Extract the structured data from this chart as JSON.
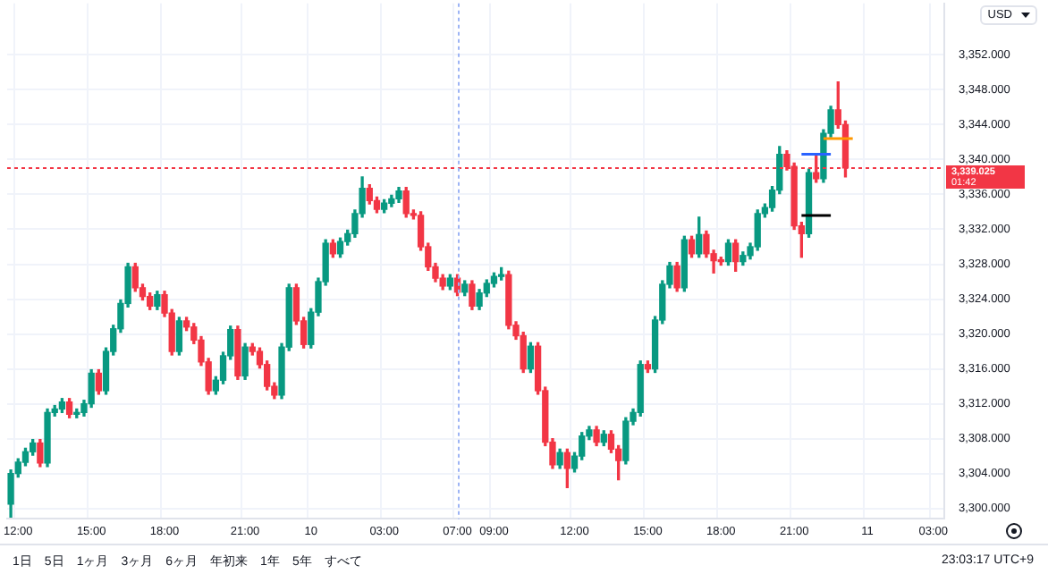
{
  "chart_data": {
    "type": "candlestick",
    "ylabel": "USD",
    "categories": [
      null,
      "12:00",
      null,
      null,
      null,
      null,
      null,
      null,
      null,
      null,
      null,
      "15:00",
      null,
      null,
      null,
      null,
      null,
      null,
      null,
      null,
      null,
      "18:00",
      null,
      null,
      null,
      null,
      null,
      null,
      null,
      null,
      null,
      null,
      "21:00",
      null,
      null,
      null,
      null,
      null,
      null,
      null,
      null,
      "10",
      null,
      null,
      null,
      null,
      null,
      null,
      null,
      null,
      null,
      "03:00",
      null,
      null,
      null,
      null,
      null,
      null,
      null,
      null,
      null,
      "07:00",
      null,
      null,
      null,
      null,
      "09:00",
      null,
      null,
      null,
      null,
      null,
      null,
      null,
      null,
      null,
      null,
      "12:00",
      null,
      null,
      null,
      null,
      null,
      null,
      null,
      null,
      null,
      "15:00",
      null,
      null,
      null,
      null,
      null,
      null,
      null,
      null,
      null,
      "18:00",
      null,
      null,
      null,
      null,
      null,
      null,
      null,
      null,
      null,
      "21:00",
      null,
      null,
      null,
      null,
      null,
      null,
      null,
      null,
      null,
      "11",
      null,
      null,
      null,
      null,
      null,
      null,
      null,
      null,
      "03:00",
      null
    ],
    "ohlc": [
      [
        3300.5,
        3304.4,
        3299,
        3304
      ],
      [
        3304,
        3305.7,
        3303.6,
        3305.3
      ],
      [
        3305.3,
        3306.9,
        3304.9,
        3306.5
      ],
      [
        3306.5,
        3307.9,
        3306.1,
        3307.5
      ],
      [
        3307.5,
        3307.9,
        3304.8,
        3305.2
      ],
      [
        3305.2,
        3311.4,
        3304.8,
        3311
      ],
      [
        3311,
        3311.8,
        3310.6,
        3311.4
      ],
      [
        3311.4,
        3312.6,
        3311,
        3312.2
      ],
      [
        3312.2,
        3312.6,
        3310.4,
        3310.8
      ],
      [
        3310.8,
        3311.4,
        3310.4,
        3311
      ],
      [
        3311,
        3312.4,
        3310.6,
        3312
      ],
      [
        3312,
        3315.9,
        3311.6,
        3315.5
      ],
      [
        3315.5,
        3315.9,
        3313.1,
        3313.5
      ],
      [
        3313.5,
        3318.4,
        3313.1,
        3318
      ],
      [
        3318,
        3321,
        3317.6,
        3320.6
      ],
      [
        3320.6,
        3323.9,
        3320.2,
        3323.5
      ],
      [
        3323.5,
        3328.1,
        3323.1,
        3327.7
      ],
      [
        3327.7,
        3328.1,
        3324.9,
        3325.3
      ],
      [
        3325.3,
        3325.7,
        3323.9,
        3324.3
      ],
      [
        3324.3,
        3324.7,
        3322.8,
        3323.2
      ],
      [
        3323.2,
        3324.9,
        3322.8,
        3324.5
      ],
      [
        3324.5,
        3324.9,
        3322,
        3322.4
      ],
      [
        3322.4,
        3322.8,
        3317.6,
        3318
      ],
      [
        3318,
        3321.9,
        3317.6,
        3321.5
      ],
      [
        3321.5,
        3321.9,
        3320.4,
        3320.8
      ],
      [
        3320.8,
        3321.2,
        3318.9,
        3319.3
      ],
      [
        3319.3,
        3319.7,
        3316.4,
        3316.8
      ],
      [
        3316.8,
        3317.2,
        3313.1,
        3313.5
      ],
      [
        3313.5,
        3315.1,
        3313.1,
        3314.7
      ],
      [
        3314.7,
        3317.9,
        3314.3,
        3317.5
      ],
      [
        3317.5,
        3320.9,
        3317.1,
        3320.5
      ],
      [
        3320.5,
        3320.9,
        3314.8,
        3315.2
      ],
      [
        3315.2,
        3318.9,
        3314.8,
        3318.5
      ],
      [
        3318.5,
        3318.9,
        3317.6,
        3318
      ],
      [
        3318,
        3318.4,
        3316.1,
        3316.5
      ],
      [
        3316.5,
        3316.9,
        3313.6,
        3314
      ],
      [
        3314,
        3314.4,
        3312.6,
        3313
      ],
      [
        3313,
        3318.9,
        3312.6,
        3318.5
      ],
      [
        3318.5,
        3325.7,
        3318.1,
        3325.3
      ],
      [
        3325.3,
        3325.7,
        3321.1,
        3321.5
      ],
      [
        3321.5,
        3321.9,
        3318.4,
        3318.8
      ],
      [
        3318.8,
        3322.9,
        3318.4,
        3322.5
      ],
      [
        3322.5,
        3326.4,
        3322.1,
        3326
      ],
      [
        3326,
        3330.8,
        3325.6,
        3330.4
      ],
      [
        3330.4,
        3330.8,
        3328.8,
        3329.2
      ],
      [
        3329.2,
        3331,
        3328.8,
        3330.6
      ],
      [
        3330.6,
        3331.9,
        3330.2,
        3331.5
      ],
      [
        3331.5,
        3334.2,
        3331.1,
        3333.8
      ],
      [
        3333.8,
        3338,
        3333.4,
        3336.7
      ],
      [
        3336.7,
        3337.1,
        3334.9,
        3335.3
      ],
      [
        3335.3,
        3335.7,
        3333.9,
        3334.3
      ],
      [
        3334.3,
        3335.4,
        3333.9,
        3335
      ],
      [
        3335,
        3335.9,
        3334.6,
        3335.5
      ],
      [
        3335.5,
        3336.8,
        3335.1,
        3336.4
      ],
      [
        3336.4,
        3336.8,
        3333.4,
        3333.8
      ],
      [
        3333.8,
        3334.2,
        3333.2,
        3333.6
      ],
      [
        3333.6,
        3334,
        3329.6,
        3330
      ],
      [
        3330,
        3330.4,
        3327.3,
        3327.7
      ],
      [
        3327.7,
        3328.1,
        3326,
        3326.4
      ],
      [
        3326.4,
        3326.8,
        3325.1,
        3325.5
      ],
      [
        3325.5,
        3326.8,
        3325.1,
        3326.4
      ],
      [
        3326.4,
        3326.8,
        3324.4,
        3324.8
      ],
      [
        3324.8,
        3326.1,
        3324.4,
        3325.7
      ],
      [
        3325.7,
        3326.1,
        3322.8,
        3323.2
      ],
      [
        3323.2,
        3325.1,
        3322.8,
        3324.7
      ],
      [
        3324.7,
        3326.2,
        3324.3,
        3325.8
      ],
      [
        3325.8,
        3327,
        3325.4,
        3326.6
      ],
      [
        3326.6,
        3327.6,
        3326.2,
        3326.8
      ],
      [
        3326.8,
        3327.2,
        3320.6,
        3321
      ],
      [
        3321,
        3321.4,
        3319.4,
        3319.8
      ],
      [
        3319.8,
        3320.2,
        3315.6,
        3316
      ],
      [
        3316,
        3319,
        3315.6,
        3318.6
      ],
      [
        3318.6,
        3319,
        3313.1,
        3313.5
      ],
      [
        3313.5,
        3313.9,
        3307.2,
        3307.6
      ],
      [
        3307.6,
        3308,
        3304.6,
        3305
      ],
      [
        3305,
        3306.8,
        3304.6,
        3306.4
      ],
      [
        3306.4,
        3306.8,
        3302.4,
        3304.6
      ],
      [
        3304.6,
        3306.4,
        3304.2,
        3306
      ],
      [
        3306,
        3308.7,
        3305.6,
        3308.3
      ],
      [
        3308.3,
        3309.4,
        3307.9,
        3309
      ],
      [
        3309,
        3309.4,
        3307.2,
        3307.6
      ],
      [
        3307.6,
        3308.9,
        3307.2,
        3308.5
      ],
      [
        3308.5,
        3308.9,
        3306.4,
        3306.8
      ],
      [
        3306.8,
        3307.2,
        3303.3,
        3305.5
      ],
      [
        3305.5,
        3310.4,
        3305.1,
        3310
      ],
      [
        3310,
        3311.4,
        3309.6,
        3311
      ],
      [
        3311,
        3316.9,
        3310.6,
        3316.5
      ],
      [
        3316.5,
        3316.9,
        3315.6,
        3316
      ],
      [
        3316,
        3322,
        3315.6,
        3321.6
      ],
      [
        3321.6,
        3326.1,
        3321.2,
        3325.7
      ],
      [
        3325.7,
        3328.2,
        3325.3,
        3327.8
      ],
      [
        3327.8,
        3328.2,
        3324.9,
        3325.3
      ],
      [
        3325.3,
        3331.2,
        3324.9,
        3330.8
      ],
      [
        3330.8,
        3331.2,
        3328.8,
        3329.2
      ],
      [
        3329.2,
        3333.4,
        3328.8,
        3331.4
      ],
      [
        3331.4,
        3331.8,
        3328.8,
        3329.2
      ],
      [
        3329.2,
        3329.6,
        3327,
        3328.4
      ],
      [
        3328.4,
        3328.8,
        3327.9,
        3328.3
      ],
      [
        3328.3,
        3330.8,
        3327.9,
        3330.4
      ],
      [
        3330.4,
        3330.8,
        3327.2,
        3328.3
      ],
      [
        3328.3,
        3329.4,
        3327.9,
        3329
      ],
      [
        3329,
        3330.4,
        3328.6,
        3330
      ],
      [
        3330,
        3334.2,
        3329.6,
        3333.8
      ],
      [
        3333.8,
        3334.9,
        3333.4,
        3334.5
      ],
      [
        3334.5,
        3336.9,
        3334.1,
        3336.5
      ],
      [
        3336.5,
        3341.5,
        3336.1,
        3340.6
      ],
      [
        3340.6,
        3341,
        3338.8,
        3339.2
      ],
      [
        3339.2,
        3339.6,
        3332,
        3332.4
      ],
      [
        3332.4,
        3332.8,
        3328.8,
        3331.5
      ],
      [
        3331.5,
        3338.9,
        3331.1,
        3338.5
      ],
      [
        3338.5,
        3340.4,
        3337.4,
        3337.8
      ],
      [
        3337.8,
        3343.4,
        3337.4,
        3343
      ],
      [
        3343,
        3346.1,
        3342.6,
        3345.7
      ],
      [
        3345.7,
        3348.9,
        3343.6,
        3344
      ],
      [
        3344,
        3344.4,
        3338,
        3339.025
      ],
      null,
      null,
      null,
      null,
      null,
      null,
      null,
      null,
      null,
      null,
      null,
      null,
      null
    ],
    "series": [
      {
        "type": "line",
        "color": "#2962ff",
        "values": [
          null,
          null,
          null,
          null,
          null,
          null,
          null,
          null,
          null,
          null,
          null,
          null,
          null,
          null,
          null,
          null,
          null,
          null,
          null,
          null,
          null,
          null,
          null,
          null,
          null,
          null,
          null,
          null,
          null,
          null,
          null,
          null,
          null,
          null,
          null,
          null,
          null,
          null,
          null,
          null,
          null,
          null,
          null,
          null,
          null,
          null,
          null,
          null,
          null,
          null,
          null,
          null,
          null,
          null,
          null,
          null,
          null,
          null,
          null,
          null,
          null,
          null,
          null,
          null,
          null,
          null,
          null,
          null,
          null,
          null,
          null,
          null,
          null,
          null,
          null,
          null,
          null,
          null,
          null,
          null,
          null,
          null,
          null,
          null,
          null,
          null,
          null,
          null,
          null,
          null,
          null,
          null,
          null,
          null,
          null,
          null,
          null,
          null,
          null,
          null,
          null,
          null,
          null,
          null,
          null,
          null,
          null,
          null,
          3340.6,
          3340.6,
          3340.6,
          3340.6,
          3340.6,
          null,
          null,
          null,
          null,
          null,
          null,
          null,
          null,
          null,
          null,
          null,
          null,
          null,
          null,
          null
        ]
      },
      {
        "type": "line",
        "color": "#000000",
        "values": [
          null,
          null,
          null,
          null,
          null,
          null,
          null,
          null,
          null,
          null,
          null,
          null,
          null,
          null,
          null,
          null,
          null,
          null,
          null,
          null,
          null,
          null,
          null,
          null,
          null,
          null,
          null,
          null,
          null,
          null,
          null,
          null,
          null,
          null,
          null,
          null,
          null,
          null,
          null,
          null,
          null,
          null,
          null,
          null,
          null,
          null,
          null,
          null,
          null,
          null,
          null,
          null,
          null,
          null,
          null,
          null,
          null,
          null,
          null,
          null,
          null,
          null,
          null,
          null,
          null,
          null,
          null,
          null,
          null,
          null,
          null,
          null,
          null,
          null,
          null,
          null,
          null,
          null,
          null,
          null,
          null,
          null,
          null,
          null,
          null,
          null,
          null,
          null,
          null,
          null,
          null,
          null,
          null,
          null,
          null,
          null,
          null,
          null,
          null,
          null,
          null,
          null,
          null,
          null,
          null,
          null,
          null,
          null,
          3333.6,
          3333.6,
          3333.6,
          3333.6,
          3333.6,
          null,
          null,
          null,
          null,
          null,
          null,
          null,
          null,
          null,
          null,
          null,
          null,
          null,
          null,
          null
        ]
      },
      {
        "type": "line",
        "color": "#ff9800",
        "values": [
          null,
          null,
          null,
          null,
          null,
          null,
          null,
          null,
          null,
          null,
          null,
          null,
          null,
          null,
          null,
          null,
          null,
          null,
          null,
          null,
          null,
          null,
          null,
          null,
          null,
          null,
          null,
          null,
          null,
          null,
          null,
          null,
          null,
          null,
          null,
          null,
          null,
          null,
          null,
          null,
          null,
          null,
          null,
          null,
          null,
          null,
          null,
          null,
          null,
          null,
          null,
          null,
          null,
          null,
          null,
          null,
          null,
          null,
          null,
          null,
          null,
          null,
          null,
          null,
          null,
          null,
          null,
          null,
          null,
          null,
          null,
          null,
          null,
          null,
          null,
          null,
          null,
          null,
          null,
          null,
          null,
          null,
          null,
          null,
          null,
          null,
          null,
          null,
          null,
          null,
          null,
          null,
          null,
          null,
          null,
          null,
          null,
          null,
          null,
          null,
          null,
          null,
          null,
          null,
          null,
          null,
          null,
          null,
          null,
          null,
          null,
          3342.4,
          3342.4,
          3342.4,
          3342.4,
          3342.4,
          null,
          null,
          null,
          null,
          null,
          null,
          null,
          null,
          null,
          null,
          null,
          null
        ]
      }
    ],
    "ylim": [
      3298.8,
      3357.9
    ],
    "yticks": [
      {
        "value": 3300,
        "label": "3,300.000"
      },
      {
        "value": 3304,
        "label": "3,304.000"
      },
      {
        "value": 3308,
        "label": "3,308.000"
      },
      {
        "value": 3312,
        "label": "3,312.000"
      },
      {
        "value": 3316,
        "label": "3,316.000"
      },
      {
        "value": 3320,
        "label": "3,320.000"
      },
      {
        "value": 3324,
        "label": "3,324.000"
      },
      {
        "value": 3328,
        "label": "3,328.000"
      },
      {
        "value": 3332,
        "label": "3,332.000"
      },
      {
        "value": 3336,
        "label": "3,336.000"
      },
      {
        "value": 3340,
        "label": "3,340.000"
      },
      {
        "value": 3344,
        "label": "3,344.000"
      },
      {
        "value": 3348,
        "label": "3,348.000"
      },
      {
        "value": 3352,
        "label": "3,352.000"
      }
    ],
    "ref_lines": [
      {
        "axis": "y",
        "value": 3339.025,
        "label": "3,339.025",
        "color": "#f23645",
        "line_style": "dotted"
      },
      {
        "axis": "x",
        "value": "07:00",
        "color": "#9db4f5",
        "line_style": "dotted"
      }
    ],
    "annotations": [
      "1日",
      "5日",
      "1ヶ月",
      "3ヶ月",
      "6ヶ月",
      "年初来",
      "1年",
      "5年",
      "すべて",
      "23:03:17 UTC+9",
      "01:42"
    ],
    "grid": true,
    "legend": false
  }
}
